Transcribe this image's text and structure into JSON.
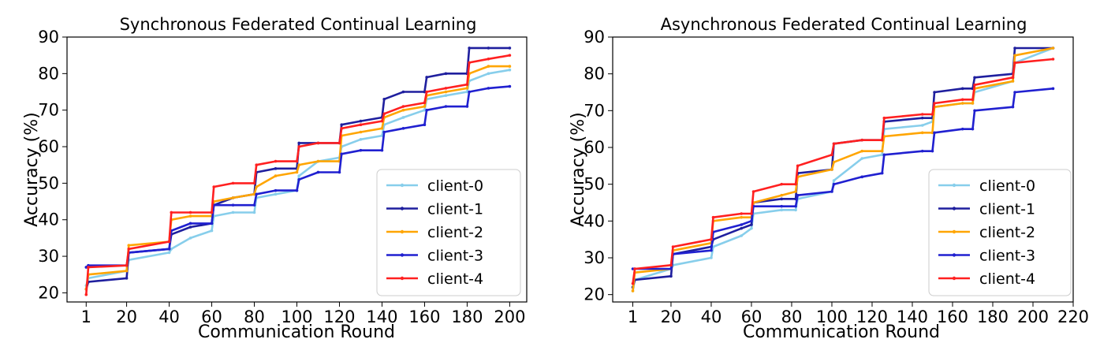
{
  "chart_data": [
    {
      "type": "line",
      "title": "Synchronous Federated Continual Learning",
      "xlabel": "Communication Round",
      "ylabel": "Accuracy (%)",
      "xlim": [
        -8,
        208
      ],
      "ylim": [
        17.5,
        90
      ],
      "xticks": [
        1,
        20,
        40,
        60,
        80,
        100,
        120,
        140,
        160,
        180,
        200
      ],
      "yticks": [
        20,
        30,
        40,
        50,
        60,
        70,
        80,
        90
      ],
      "legend_position": "lower right",
      "series": [
        {
          "name": "client-0",
          "color": "#87ceeb",
          "x": [
            1,
            2,
            20,
            21,
            40,
            41,
            50,
            60,
            61,
            70,
            80,
            81,
            90,
            100,
            101,
            110,
            120,
            121,
            130,
            140,
            141,
            150,
            160,
            161,
            170,
            180,
            181,
            190,
            200
          ],
          "y": [
            22,
            24,
            26,
            29,
            31,
            32,
            35,
            37,
            41,
            42,
            42,
            46,
            47,
            48,
            52,
            56,
            57,
            60,
            62,
            63,
            66,
            68,
            70,
            73,
            74,
            75,
            78,
            80,
            81
          ]
        },
        {
          "name": "client-1",
          "color": "#1f1f9e",
          "x": [
            1,
            2,
            20,
            21,
            40,
            41,
            50,
            60,
            61,
            70,
            80,
            81,
            90,
            100,
            101,
            110,
            120,
            121,
            130,
            140,
            141,
            150,
            160,
            161,
            170,
            180,
            181,
            190,
            200
          ],
          "y": [
            21,
            23,
            24,
            31,
            32,
            36,
            38,
            39,
            44,
            46,
            47,
            53,
            54,
            54,
            61,
            61,
            61,
            66,
            67,
            68,
            73,
            75,
            75,
            79,
            80,
            80,
            87,
            87,
            87
          ]
        },
        {
          "name": "client-2",
          "color": "#ffa500",
          "x": [
            1,
            2,
            20,
            21,
            40,
            41,
            50,
            60,
            61,
            70,
            80,
            81,
            90,
            100,
            101,
            110,
            120,
            121,
            130,
            140,
            141,
            150,
            160,
            161,
            170,
            180,
            181,
            190,
            200
          ],
          "y": [
            21,
            25,
            26,
            33,
            34,
            40,
            41,
            41,
            45,
            46,
            47,
            49,
            52,
            53,
            55,
            56,
            56,
            63,
            64,
            65,
            68,
            70,
            71,
            74,
            75,
            76,
            80,
            82,
            82
          ]
        },
        {
          "name": "client-3",
          "color": "#2020d0",
          "x": [
            1,
            2,
            20,
            21,
            40,
            41,
            50,
            60,
            61,
            70,
            80,
            81,
            90,
            100,
            101,
            110,
            120,
            121,
            130,
            140,
            141,
            150,
            160,
            161,
            170,
            180,
            181,
            190,
            200
          ],
          "y": [
            27,
            27.5,
            27.5,
            31,
            32,
            37,
            39,
            39,
            44,
            44,
            44,
            47,
            48,
            48,
            51,
            53,
            53,
            58,
            59,
            59,
            64,
            65,
            66,
            70,
            71,
            71,
            75,
            76,
            76.5
          ]
        },
        {
          "name": "client-4",
          "color": "#ff2020",
          "x": [
            1,
            2,
            20,
            21,
            40,
            41,
            50,
            60,
            61,
            70,
            80,
            81,
            90,
            100,
            101,
            110,
            120,
            121,
            130,
            140,
            141,
            150,
            160,
            161,
            170,
            180,
            181,
            190,
            200
          ],
          "y": [
            19.5,
            27,
            27.5,
            32,
            34,
            42,
            42,
            42,
            49,
            50,
            50,
            55,
            56,
            56,
            60,
            61,
            61,
            65,
            66,
            67,
            69,
            71,
            72,
            75,
            76,
            77,
            83,
            84,
            85
          ]
        }
      ]
    },
    {
      "type": "line",
      "title": "Asynchronous Federated Continual Learning",
      "xlabel": "Communication Round",
      "ylabel": "Accuracy (%)",
      "xlim": [
        -9,
        220
      ],
      "ylim": [
        18,
        90
      ],
      "xticks": [
        1,
        20,
        40,
        60,
        80,
        100,
        120,
        140,
        160,
        180,
        200,
        220
      ],
      "yticks": [
        20,
        30,
        40,
        50,
        60,
        70,
        80,
        90
      ],
      "legend_position": "lower right",
      "series": [
        {
          "name": "client-0",
          "color": "#87ceeb",
          "x": [
            1,
            2,
            20,
            21,
            40,
            41,
            55,
            60,
            61,
            75,
            82,
            83,
            100,
            101,
            115,
            125,
            126,
            145,
            150,
            151,
            165,
            170,
            171,
            190,
            191,
            210
          ],
          "y": [
            21,
            24,
            27,
            28,
            30,
            33,
            36,
            38,
            42,
            43,
            43,
            46,
            48,
            51,
            57,
            58,
            65,
            66,
            67,
            71,
            72,
            72,
            75,
            78,
            83,
            87
          ]
        },
        {
          "name": "client-1",
          "color": "#1f1f9e",
          "x": [
            1,
            2,
            20,
            21,
            40,
            41,
            55,
            60,
            61,
            75,
            82,
            83,
            100,
            101,
            115,
            125,
            126,
            145,
            150,
            151,
            165,
            170,
            171,
            190,
            191,
            210
          ],
          "y": [
            22,
            24,
            25,
            31,
            33,
            35,
            38,
            39,
            45,
            46,
            46,
            53,
            54,
            61,
            62,
            62,
            67,
            68,
            68,
            75,
            76,
            76,
            79,
            80,
            87,
            87
          ]
        },
        {
          "name": "client-2",
          "color": "#ffa500",
          "x": [
            1,
            2,
            20,
            21,
            40,
            41,
            55,
            60,
            61,
            75,
            82,
            83,
            100,
            101,
            115,
            125,
            126,
            145,
            150,
            151,
            165,
            170,
            171,
            190,
            191,
            210
          ],
          "y": [
            21,
            26,
            27,
            32,
            34,
            40,
            41,
            41,
            45,
            47,
            48,
            52,
            54,
            56,
            59,
            59,
            63,
            64,
            64,
            71,
            72,
            72,
            76,
            78,
            85,
            87
          ]
        },
        {
          "name": "client-3",
          "color": "#2020d0",
          "x": [
            1,
            2,
            20,
            21,
            40,
            41,
            55,
            60,
            61,
            75,
            82,
            83,
            100,
            101,
            115,
            125,
            126,
            145,
            150,
            151,
            165,
            170,
            171,
            190,
            191,
            210
          ],
          "y": [
            27,
            27,
            27,
            31,
            32,
            37,
            39,
            40,
            44,
            44,
            44,
            47,
            48,
            50,
            52,
            53,
            58,
            59,
            59,
            64,
            65,
            65,
            70,
            71,
            75,
            76
          ]
        },
        {
          "name": "client-4",
          "color": "#ff2020",
          "x": [
            1,
            2,
            20,
            21,
            40,
            41,
            55,
            60,
            61,
            75,
            82,
            83,
            100,
            101,
            115,
            125,
            126,
            145,
            150,
            151,
            165,
            170,
            171,
            190,
            191,
            210
          ],
          "y": [
            23,
            27,
            28,
            33,
            35,
            41,
            42,
            42,
            48,
            50,
            50,
            55,
            58,
            61,
            62,
            62,
            68,
            69,
            69,
            72,
            73,
            73,
            77,
            79,
            83,
            84
          ]
        }
      ]
    }
  ]
}
